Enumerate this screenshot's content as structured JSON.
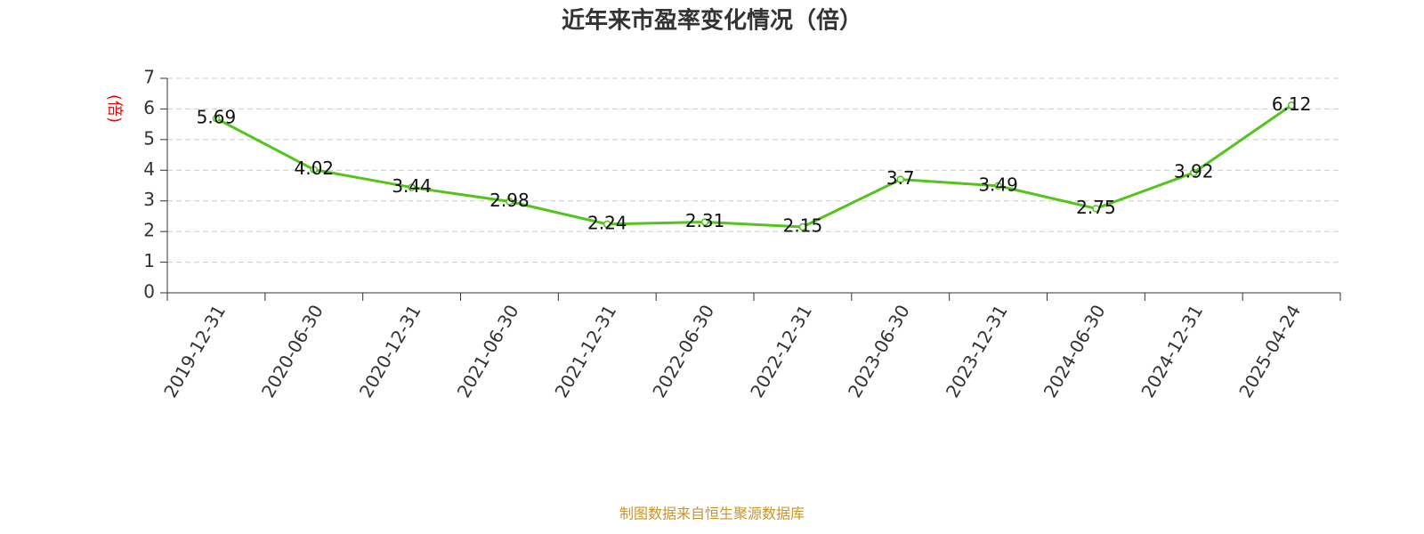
{
  "chart_data": {
    "type": "line",
    "title": "近年来市盈率变化情况（倍）",
    "y_label": "(倍)",
    "categories": [
      "2019-12-31",
      "2020-06-30",
      "2020-12-31",
      "2021-06-30",
      "2021-12-31",
      "2022-06-30",
      "2022-12-31",
      "2023-06-30",
      "2023-12-31",
      "2024-06-30",
      "2024-12-31",
      "2025-04-24"
    ],
    "values": [
      5.69,
      4.02,
      3.44,
      2.98,
      2.24,
      2.31,
      2.15,
      3.7,
      3.49,
      2.75,
      3.92,
      6.12
    ],
    "color": "#52c41a",
    "ylim": [
      0,
      7
    ],
    "yticks": [
      0,
      1,
      2,
      3,
      4,
      5,
      6,
      7
    ],
    "grid": true,
    "source": "制图数据来自恒生聚源数据库"
  }
}
